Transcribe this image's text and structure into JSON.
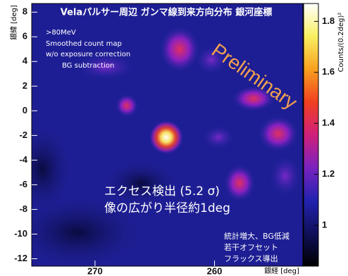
{
  "chart_data": {
    "type": "heatmap",
    "title": "Velaパルサー周辺 ガンマ線到来方向分布 銀河座標",
    "x_label": "銀経 [deg]",
    "y_label": "銀緯 [deg]",
    "xlim": [
      275.3,
      252.6
    ],
    "xticks": [
      270,
      260
    ],
    "ylim": [
      -12.6,
      8.7
    ],
    "yticks": [
      -12,
      -10,
      -8,
      -6,
      -4,
      -2,
      0,
      2,
      4,
      6,
      8
    ],
    "colorbar": {
      "label": "Counts/(0.2deg)²",
      "lim": [
        0.84,
        1.87
      ],
      "ticks": [
        1,
        1.2,
        1.4,
        1.6,
        1.8
      ],
      "colors": [
        "#000000",
        "#10105a",
        "#2222b0",
        "#7a22c0",
        "#d0207a",
        "#f04020",
        "#f8a020",
        "#f8f060",
        "#ffffff"
      ]
    },
    "notes": [
      ">80MeV",
      "Smoothed count map",
      "w/o exposure correction",
      "BG subtraction"
    ],
    "watermark": "Preliminary",
    "annotations": [
      "エクセス検出 (5.2 σ)",
      "像の広がり半径約1deg"
    ],
    "remarks": [
      "統計増大、BG低減",
      "若干オフセット",
      "フラックス導出"
    ]
  }
}
